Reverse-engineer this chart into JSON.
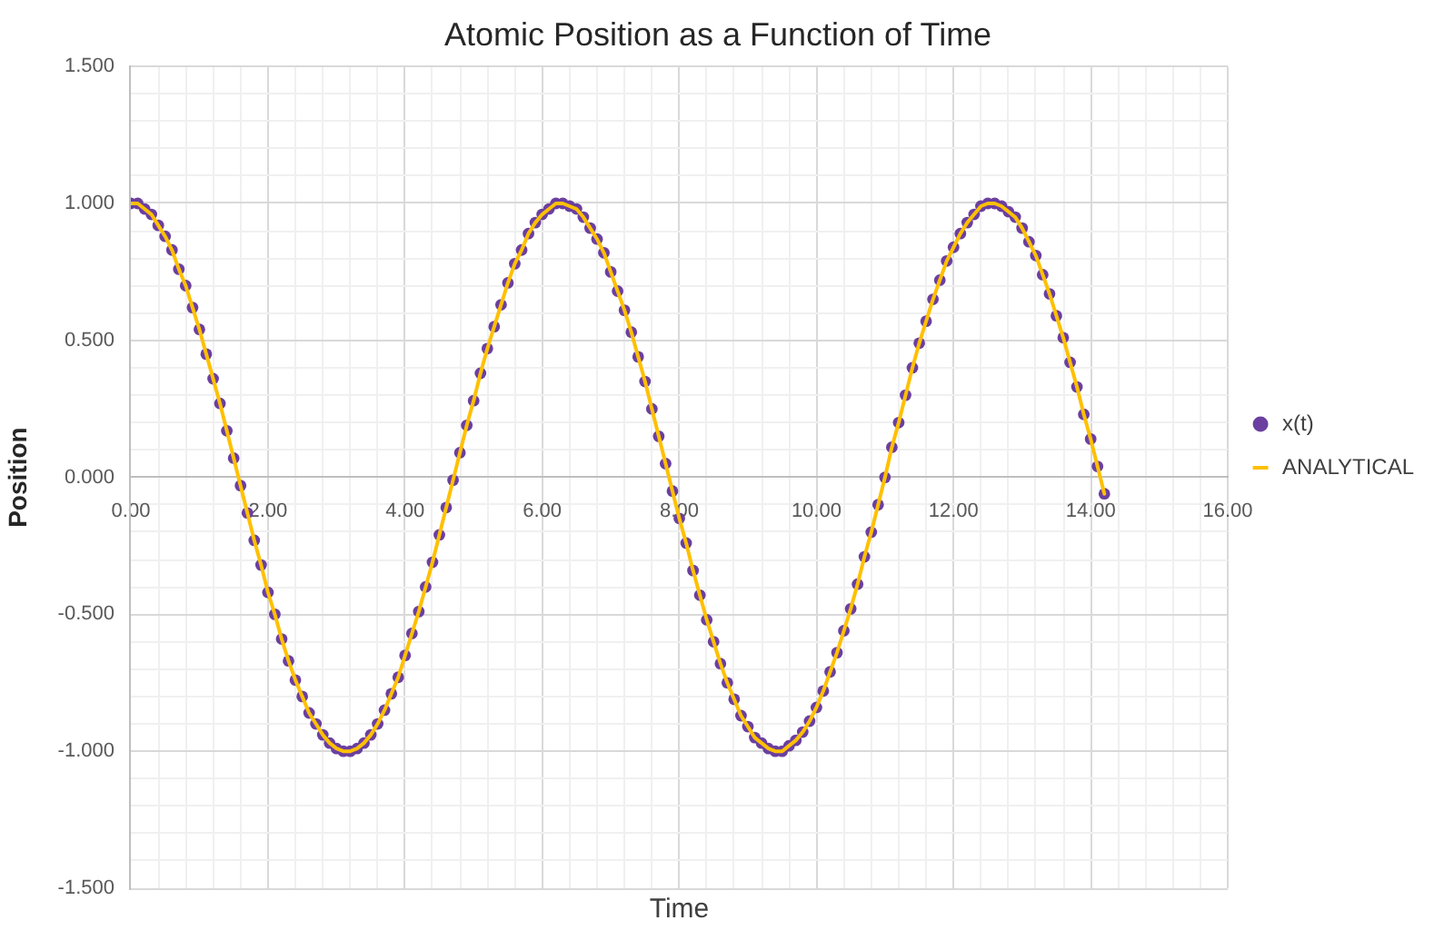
{
  "chart_data": {
    "type": "scatter",
    "title": "Atomic Position as a Function of Time",
    "xlabel": "Time",
    "ylabel": "Position",
    "x": [
      0,
      0.1,
      0.2,
      0.3,
      0.4,
      0.5,
      0.6,
      0.7,
      0.8,
      0.9,
      1.0,
      1.1,
      1.2,
      1.3,
      1.4,
      1.5,
      1.6,
      1.7,
      1.8,
      1.9,
      2.0,
      2.1,
      2.2,
      2.3,
      2.4,
      2.5,
      2.6,
      2.7,
      2.8,
      2.9,
      3.0,
      3.1,
      3.2,
      3.3,
      3.4,
      3.5,
      3.6,
      3.7,
      3.8,
      3.9,
      4.0,
      4.1,
      4.2,
      4.3,
      4.4,
      4.5,
      4.6,
      4.7,
      4.8,
      4.9,
      5.0,
      5.1,
      5.2,
      5.3,
      5.4,
      5.5,
      5.6,
      5.7,
      5.8,
      5.9,
      6.0,
      6.1,
      6.2,
      6.3,
      6.4,
      6.5,
      6.6,
      6.7,
      6.8,
      6.9,
      7.0,
      7.1,
      7.2,
      7.3,
      7.4,
      7.5,
      7.6,
      7.7,
      7.8,
      7.9,
      8.0,
      8.1,
      8.2,
      8.3,
      8.4,
      8.5,
      8.6,
      8.7,
      8.8,
      8.9,
      9.0,
      9.1,
      9.2,
      9.3,
      9.4,
      9.5,
      9.6,
      9.7,
      9.8,
      9.9,
      10.0,
      10.1,
      10.2,
      10.3,
      10.4,
      10.5,
      10.6,
      10.7,
      10.8,
      10.9,
      11.0,
      11.1,
      11.2,
      11.3,
      11.4,
      11.5,
      11.6,
      11.7,
      11.8,
      11.9,
      12.0,
      12.1,
      12.2,
      12.3,
      12.4,
      12.5,
      12.6,
      12.7,
      12.8,
      12.9,
      13.0,
      13.1,
      13.2,
      13.3,
      13.4,
      13.5,
      13.6,
      13.7,
      13.8,
      13.9,
      14.0,
      14.1,
      14.2
    ],
    "series": [
      {
        "name": "x(t)",
        "type": "scatter",
        "color": "#6b3fa0",
        "marker": "circle",
        "values": [
          1.0,
          1.0,
          0.98,
          0.96,
          0.92,
          0.88,
          0.83,
          0.76,
          0.7,
          0.62,
          0.54,
          0.45,
          0.36,
          0.27,
          0.17,
          0.07,
          -0.03,
          -0.13,
          -0.23,
          -0.32,
          -0.42,
          -0.5,
          -0.59,
          -0.67,
          -0.74,
          -0.8,
          -0.86,
          -0.9,
          -0.94,
          -0.97,
          -0.99,
          -1.0,
          -1.0,
          -0.99,
          -0.97,
          -0.94,
          -0.9,
          -0.85,
          -0.79,
          -0.73,
          -0.65,
          -0.57,
          -0.49,
          -0.4,
          -0.31,
          -0.21,
          -0.11,
          -0.01,
          0.09,
          0.19,
          0.28,
          0.38,
          0.47,
          0.55,
          0.63,
          0.71,
          0.78,
          0.83,
          0.89,
          0.93,
          0.96,
          0.98,
          1.0,
          1.0,
          0.99,
          0.98,
          0.95,
          0.91,
          0.87,
          0.82,
          0.75,
          0.68,
          0.61,
          0.53,
          0.44,
          0.35,
          0.25,
          0.15,
          0.05,
          -0.05,
          -0.15,
          -0.24,
          -0.34,
          -0.43,
          -0.52,
          -0.6,
          -0.68,
          -0.75,
          -0.81,
          -0.87,
          -0.91,
          -0.95,
          -0.97,
          -0.99,
          -1.0,
          -1.0,
          -0.98,
          -0.96,
          -0.93,
          -0.89,
          -0.84,
          -0.78,
          -0.71,
          -0.64,
          -0.56,
          -0.48,
          -0.39,
          -0.29,
          -0.2,
          -0.1,
          0.0,
          0.11,
          0.2,
          0.3,
          0.4,
          0.49,
          0.57,
          0.65,
          0.72,
          0.79,
          0.84,
          0.89,
          0.93,
          0.96,
          0.99,
          1.0,
          1.0,
          0.99,
          0.97,
          0.95,
          0.91,
          0.86,
          0.81,
          0.74,
          0.67,
          0.59,
          0.51,
          0.42,
          0.33,
          0.23,
          0.14,
          0.04,
          -0.06
        ]
      },
      {
        "name": "ANALYTICAL",
        "type": "line",
        "color": "#ffc000",
        "marker": "none",
        "values": [
          1.0,
          1.0,
          0.98,
          0.96,
          0.92,
          0.88,
          0.83,
          0.76,
          0.7,
          0.62,
          0.54,
          0.45,
          0.36,
          0.27,
          0.17,
          0.07,
          -0.03,
          -0.13,
          -0.23,
          -0.32,
          -0.42,
          -0.5,
          -0.59,
          -0.67,
          -0.74,
          -0.8,
          -0.86,
          -0.9,
          -0.94,
          -0.97,
          -0.99,
          -1.0,
          -1.0,
          -0.99,
          -0.97,
          -0.94,
          -0.9,
          -0.85,
          -0.79,
          -0.73,
          -0.65,
          -0.57,
          -0.49,
          -0.4,
          -0.31,
          -0.21,
          -0.11,
          -0.01,
          0.09,
          0.19,
          0.28,
          0.38,
          0.47,
          0.55,
          0.63,
          0.71,
          0.78,
          0.83,
          0.89,
          0.93,
          0.96,
          0.98,
          1.0,
          1.0,
          0.99,
          0.98,
          0.95,
          0.91,
          0.87,
          0.82,
          0.75,
          0.68,
          0.61,
          0.53,
          0.44,
          0.35,
          0.25,
          0.15,
          0.05,
          -0.05,
          -0.15,
          -0.24,
          -0.34,
          -0.43,
          -0.52,
          -0.6,
          -0.68,
          -0.75,
          -0.81,
          -0.87,
          -0.91,
          -0.95,
          -0.97,
          -0.99,
          -1.0,
          -1.0,
          -0.98,
          -0.96,
          -0.93,
          -0.89,
          -0.84,
          -0.78,
          -0.71,
          -0.64,
          -0.56,
          -0.48,
          -0.39,
          -0.29,
          -0.2,
          -0.1,
          0.0,
          0.11,
          0.2,
          0.3,
          0.4,
          0.49,
          0.57,
          0.65,
          0.72,
          0.79,
          0.84,
          0.89,
          0.93,
          0.96,
          0.99,
          1.0,
          1.0,
          0.99,
          0.97,
          0.95,
          0.91,
          0.86,
          0.81,
          0.74,
          0.67,
          0.59,
          0.51,
          0.42,
          0.33,
          0.23,
          0.14,
          0.04,
          -0.06
        ]
      }
    ],
    "xlim": [
      0,
      16
    ],
    "ylim": [
      -1.5,
      1.5
    ],
    "xticks": [
      {
        "value": 0,
        "label": "0.00"
      },
      {
        "value": 0.4,
        "label": null
      },
      {
        "value": 0.8,
        "label": null
      },
      {
        "value": 1.2,
        "label": null
      },
      {
        "value": 1.6,
        "label": null
      },
      {
        "value": 2,
        "label": "2.00"
      },
      {
        "value": 2.4,
        "label": null
      },
      {
        "value": 2.8,
        "label": null
      },
      {
        "value": 3.2,
        "label": null
      },
      {
        "value": 3.6,
        "label": null
      },
      {
        "value": 4,
        "label": "4.00"
      },
      {
        "value": 4.4,
        "label": null
      },
      {
        "value": 4.8,
        "label": null
      },
      {
        "value": 5.2,
        "label": null
      },
      {
        "value": 5.6,
        "label": null
      },
      {
        "value": 6,
        "label": "6.00"
      },
      {
        "value": 6.4,
        "label": null
      },
      {
        "value": 6.8,
        "label": null
      },
      {
        "value": 7.2,
        "label": null
      },
      {
        "value": 7.6,
        "label": null
      },
      {
        "value": 8,
        "label": "8.00"
      },
      {
        "value": 8.4,
        "label": null
      },
      {
        "value": 8.8,
        "label": null
      },
      {
        "value": 9.2,
        "label": null
      },
      {
        "value": 9.6,
        "label": null
      },
      {
        "value": 10,
        "label": "10.00"
      },
      {
        "value": 10.4,
        "label": null
      },
      {
        "value": 10.8,
        "label": null
      },
      {
        "value": 11.2,
        "label": null
      },
      {
        "value": 11.6,
        "label": null
      },
      {
        "value": 12,
        "label": "12.00"
      },
      {
        "value": 12.4,
        "label": null
      },
      {
        "value": 12.8,
        "label": null
      },
      {
        "value": 13.2,
        "label": null
      },
      {
        "value": 13.6,
        "label": null
      },
      {
        "value": 14,
        "label": "14.00"
      },
      {
        "value": 14.4,
        "label": null
      },
      {
        "value": 14.8,
        "label": null
      },
      {
        "value": 15.2,
        "label": null
      },
      {
        "value": 15.6,
        "label": null
      },
      {
        "value": 16,
        "label": "16.00"
      }
    ],
    "yticks": [
      {
        "value": -1.5,
        "label": "-1.500"
      },
      {
        "value": -1.4,
        "label": null
      },
      {
        "value": -1.3,
        "label": null
      },
      {
        "value": -1.2,
        "label": null
      },
      {
        "value": -1.1,
        "label": null
      },
      {
        "value": -1.0,
        "label": "-1.000"
      },
      {
        "value": -0.9,
        "label": null
      },
      {
        "value": -0.8,
        "label": null
      },
      {
        "value": -0.7,
        "label": null
      },
      {
        "value": -0.6,
        "label": null
      },
      {
        "value": -0.5,
        "label": "-0.500"
      },
      {
        "value": -0.4,
        "label": null
      },
      {
        "value": -0.3,
        "label": null
      },
      {
        "value": -0.2,
        "label": null
      },
      {
        "value": -0.1,
        "label": null
      },
      {
        "value": 0,
        "label": "0.000"
      },
      {
        "value": 0.1,
        "label": null
      },
      {
        "value": 0.2,
        "label": null
      },
      {
        "value": 0.3,
        "label": null
      },
      {
        "value": 0.4,
        "label": null
      },
      {
        "value": 0.5,
        "label": "0.500"
      },
      {
        "value": 0.6,
        "label": null
      },
      {
        "value": 0.7,
        "label": null
      },
      {
        "value": 0.8,
        "label": null
      },
      {
        "value": 0.9,
        "label": null
      },
      {
        "value": 1.0,
        "label": "1.000"
      },
      {
        "value": 1.1,
        "label": null
      },
      {
        "value": 1.2,
        "label": null
      },
      {
        "value": 1.3,
        "label": null
      },
      {
        "value": 1.4,
        "label": null
      },
      {
        "value": 1.5,
        "label": "1.500"
      }
    ],
    "grid": true,
    "legend": "right"
  }
}
